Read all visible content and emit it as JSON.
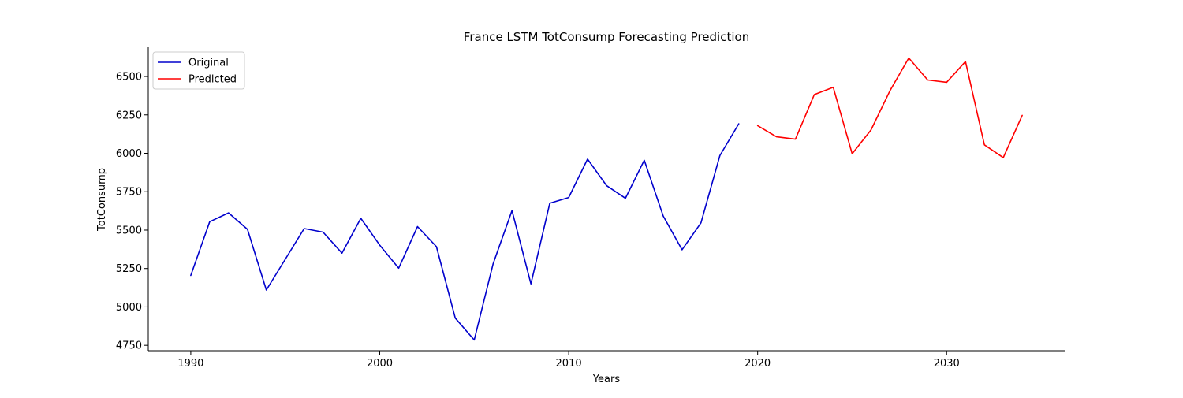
{
  "chart_data": {
    "type": "line",
    "title": "France LSTM TotConsump Forecasting Prediction",
    "xlabel": "Years",
    "ylabel": "TotConsump",
    "xlim": [
      1987.75,
      2036.25
    ],
    "ylim": [
      4715,
      6690
    ],
    "x_ticks": [
      1990,
      2000,
      2010,
      2020,
      2030
    ],
    "y_ticks": [
      4750,
      5000,
      5250,
      5500,
      5750,
      6000,
      6250,
      6500
    ],
    "grid": false,
    "legend_position": "upper-left",
    "series": [
      {
        "name": "Original",
        "color": "#0000cc",
        "x": [
          1990,
          1991,
          1992,
          1993,
          1994,
          1995,
          1996,
          1997,
          1998,
          1999,
          2000,
          2001,
          2002,
          2003,
          2004,
          2005,
          2006,
          2007,
          2008,
          2009,
          2010,
          2011,
          2012,
          2013,
          2014,
          2015,
          2016,
          2017,
          2018,
          2019
        ],
        "y": [
          5205,
          5555,
          5612,
          5505,
          5110,
          5310,
          5510,
          5487,
          5350,
          5577,
          5402,
          5252,
          5523,
          5392,
          4927,
          4785,
          5280,
          5627,
          5150,
          5675,
          5712,
          5962,
          5790,
          5707,
          5955,
          5592,
          5372,
          5547,
          5985,
          6192
        ]
      },
      {
        "name": "Predicted",
        "color": "#ff0000",
        "x": [
          2020,
          2021,
          2022,
          2023,
          2024,
          2025,
          2026,
          2027,
          2028,
          2029,
          2030,
          2031,
          2032,
          2033,
          2034
        ],
        "y": [
          6180,
          6107,
          6092,
          6382,
          6430,
          5997,
          6152,
          6407,
          6620,
          6477,
          6462,
          6597,
          6055,
          5972,
          6247
        ]
      }
    ]
  }
}
